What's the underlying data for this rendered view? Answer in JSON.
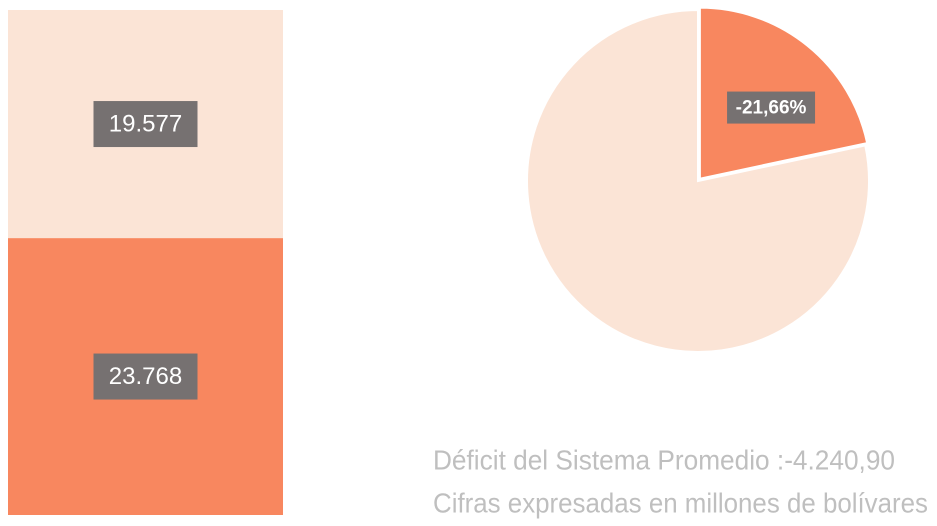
{
  "chart_data": [
    {
      "type": "stacked-bar",
      "series": [
        {
          "color": "#f8875f",
          "values": [
            23768
          ],
          "value_labels": [
            "23.768"
          ]
        },
        {
          "color": "#fbe4d6",
          "values": [
            19577
          ],
          "value_labels": [
            "19.577"
          ]
        }
      ]
    },
    {
      "type": "pie",
      "values": [
        -21.66,
        78.34
      ],
      "value_labels": [
        "-21,66%",
        null
      ],
      "colors": [
        "#f8875f",
        "#fbe4d6"
      ],
      "annotations": [
        "Déficit del Sistema Promedio :-4.240,90",
        "Cifras expresadas en millones de bolívares"
      ]
    }
  ]
}
